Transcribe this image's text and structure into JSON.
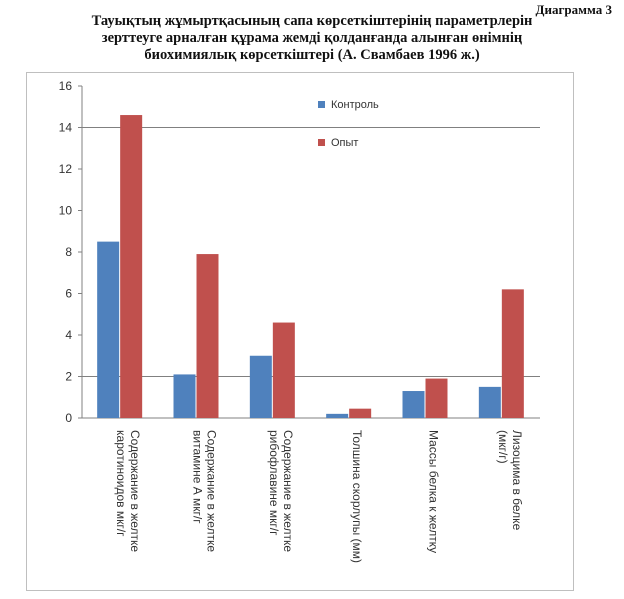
{
  "caption": "Диаграмма 3",
  "title_lines": [
    "Тауықтың жұмыртқасының сапа көрсеткіштерінің параметрлерін",
    "зерттеуге арналған құрама жемді  қолданғанда алынған өнімнің",
    "биохимиялық көрсеткіштері (А. Свамбаев 1996 ж.)"
  ],
  "colors": {
    "control": "#4f81bd",
    "experiment": "#c0504d",
    "grid": "#808080"
  },
  "chart_data": {
    "type": "bar",
    "categories": [
      [
        "Содержание в желтке",
        "каротиноидов мкг/г"
      ],
      [
        "Содержание в желтке",
        "витамине А мкг/г"
      ],
      [
        "Содержание в желтке",
        "рибофлавине мкг/г"
      ],
      [
        "Толшина скорлупы (мм)"
      ],
      [
        "Массы белка к желтку"
      ],
      [
        "Лизоцима в белке",
        "(мкг/г)"
      ]
    ],
    "series": [
      {
        "name": "Контроль",
        "values": [
          8.5,
          2.1,
          3.0,
          0.2,
          1.3,
          1.5
        ]
      },
      {
        "name": "Опыт",
        "values": [
          14.6,
          7.9,
          4.6,
          0.45,
          1.9,
          6.2
        ]
      }
    ],
    "ylim": [
      0,
      16
    ],
    "yticks": [
      0,
      2,
      4,
      6,
      8,
      10,
      12,
      14,
      16
    ],
    "gridlines": [
      2,
      14
    ],
    "legend_position": "top-right-inside"
  }
}
